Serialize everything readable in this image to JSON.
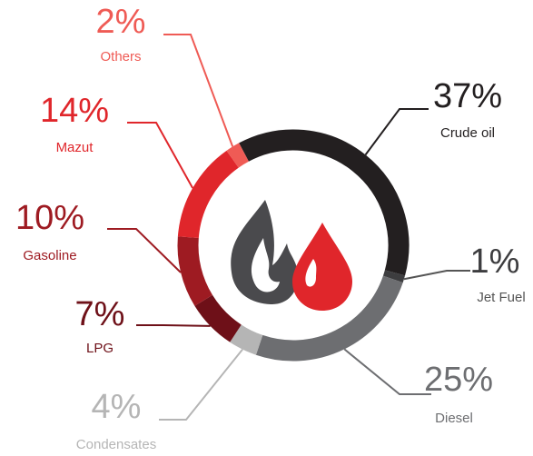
{
  "chart_data": {
    "type": "donut",
    "categories": [
      "Crude oil",
      "Jet Fuel",
      "Diesel",
      "Condensates",
      "LPG",
      "Gasoline",
      "Mazut",
      "Others"
    ],
    "values": [
      37,
      1,
      25,
      4,
      7,
      10,
      14,
      2
    ],
    "value_labels": [
      "37%",
      "1%",
      "25%",
      "4%",
      "7%",
      "10%",
      "14%",
      "2%"
    ],
    "colors": [
      "#231f20",
      "#3d3d3f",
      "#6d6e71",
      "#b5b5b5",
      "#6e1018",
      "#9e1b22",
      "#e0262b",
      "#ef5b55"
    ]
  }
}
